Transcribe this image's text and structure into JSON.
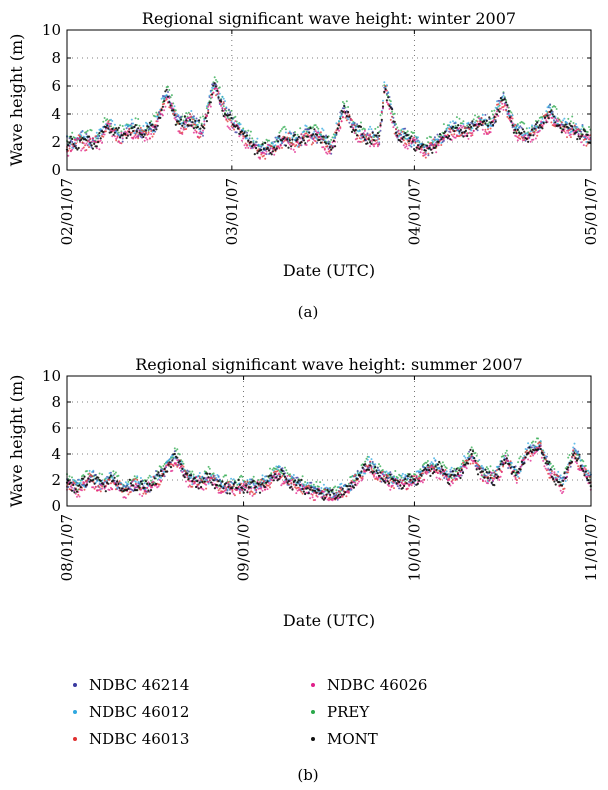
{
  "chart_data": [
    {
      "type": "scatter",
      "title": "Regional significant wave height: winter 2007",
      "xlabel": "Date (UTC)",
      "ylabel": "Wave height (m)",
      "ylim": [
        0,
        10
      ],
      "yticks": [
        0,
        2,
        4,
        6,
        8,
        10
      ],
      "xlim": [
        "2007-02-01",
        "2007-05-01"
      ],
      "xticks": [
        "02/01/07",
        "03/01/07",
        "04/01/07",
        "05/01/07"
      ],
      "grid": true,
      "caption": "(a)",
      "series_profile": [
        [
          "2007-02-01",
          1.8
        ],
        [
          "2007-02-04",
          2.2
        ],
        [
          "2007-02-06",
          2.0
        ],
        [
          "2007-02-08",
          3.3
        ],
        [
          "2007-02-10",
          2.4
        ],
        [
          "2007-02-12",
          3.0
        ],
        [
          "2007-02-14",
          2.6
        ],
        [
          "2007-02-16",
          3.2
        ],
        [
          "2007-02-18",
          5.5
        ],
        [
          "2007-02-20",
          3.2
        ],
        [
          "2007-02-22",
          3.6
        ],
        [
          "2007-02-24",
          2.8
        ],
        [
          "2007-02-26",
          6.2
        ],
        [
          "2007-02-28",
          4.0
        ],
        [
          "2007-03-02",
          3.0
        ],
        [
          "2007-03-04",
          2.0
        ],
        [
          "2007-03-06",
          1.4
        ],
        [
          "2007-03-08",
          1.6
        ],
        [
          "2007-03-10",
          2.3
        ],
        [
          "2007-03-12",
          2.0
        ],
        [
          "2007-03-14",
          2.6
        ],
        [
          "2007-03-16",
          2.4
        ],
        [
          "2007-03-18",
          1.5
        ],
        [
          "2007-03-20",
          4.5
        ],
        [
          "2007-03-22",
          2.8
        ],
        [
          "2007-03-24",
          2.4
        ],
        [
          "2007-03-26",
          2.2
        ],
        [
          "2007-03-27",
          6.0
        ],
        [
          "2007-03-29",
          2.6
        ],
        [
          "2007-04-01",
          2.0
        ],
        [
          "2007-04-03",
          1.4
        ],
        [
          "2007-04-06",
          2.5
        ],
        [
          "2007-04-08",
          3.0
        ],
        [
          "2007-04-10",
          2.8
        ],
        [
          "2007-04-12",
          3.4
        ],
        [
          "2007-04-14",
          3.2
        ],
        [
          "2007-04-16",
          5.2
        ],
        [
          "2007-04-18",
          3.0
        ],
        [
          "2007-04-20",
          2.4
        ],
        [
          "2007-04-22",
          3.0
        ],
        [
          "2007-04-24",
          4.2
        ],
        [
          "2007-04-26",
          3.0
        ],
        [
          "2007-04-28",
          3.0
        ],
        [
          "2007-05-01",
          2.2
        ]
      ]
    },
    {
      "type": "scatter",
      "title": "Regional significant wave height: summer 2007",
      "xlabel": "Date (UTC)",
      "ylabel": "Wave height (m)",
      "ylim": [
        0,
        10
      ],
      "yticks": [
        0,
        2,
        4,
        6,
        8,
        10
      ],
      "xlim": [
        "2007-08-01",
        "2007-11-01"
      ],
      "xticks": [
        "08/01/07",
        "09/01/07",
        "10/01/07",
        "11/01/07"
      ],
      "grid": true,
      "caption": "(b)",
      "series_profile": [
        [
          "2007-08-01",
          1.8
        ],
        [
          "2007-08-03",
          1.4
        ],
        [
          "2007-08-05",
          2.2
        ],
        [
          "2007-08-07",
          1.6
        ],
        [
          "2007-08-09",
          2.0
        ],
        [
          "2007-08-11",
          1.2
        ],
        [
          "2007-08-13",
          1.8
        ],
        [
          "2007-08-15",
          1.4
        ],
        [
          "2007-08-17",
          2.2
        ],
        [
          "2007-08-20",
          3.8
        ],
        [
          "2007-08-22",
          2.4
        ],
        [
          "2007-08-24",
          1.8
        ],
        [
          "2007-08-26",
          2.2
        ],
        [
          "2007-08-28",
          1.6
        ],
        [
          "2007-08-30",
          1.4
        ],
        [
          "2007-09-01",
          1.6
        ],
        [
          "2007-09-03",
          1.5
        ],
        [
          "2007-09-05",
          1.8
        ],
        [
          "2007-09-07",
          2.6
        ],
        [
          "2007-09-09",
          2.0
        ],
        [
          "2007-09-11",
          1.6
        ],
        [
          "2007-09-13",
          1.2
        ],
        [
          "2007-09-15",
          1.0
        ],
        [
          "2007-09-17",
          0.8
        ],
        [
          "2007-09-19",
          1.2
        ],
        [
          "2007-09-21",
          2.2
        ],
        [
          "2007-09-23",
          3.2
        ],
        [
          "2007-09-25",
          2.4
        ],
        [
          "2007-09-27",
          2.0
        ],
        [
          "2007-09-29",
          1.8
        ],
        [
          "2007-10-01",
          2.0
        ],
        [
          "2007-10-03",
          2.8
        ],
        [
          "2007-10-05",
          3.0
        ],
        [
          "2007-10-07",
          2.2
        ],
        [
          "2007-10-09",
          2.6
        ],
        [
          "2007-10-11",
          4.0
        ],
        [
          "2007-10-13",
          2.4
        ],
        [
          "2007-10-15",
          2.2
        ],
        [
          "2007-10-17",
          3.6
        ],
        [
          "2007-10-19",
          2.4
        ],
        [
          "2007-10-21",
          4.2
        ],
        [
          "2007-10-23",
          4.6
        ],
        [
          "2007-10-25",
          2.6
        ],
        [
          "2007-10-27",
          1.6
        ],
        [
          "2007-10-29",
          4.2
        ],
        [
          "2007-11-01",
          1.8
        ]
      ]
    }
  ],
  "legend": {
    "entries": [
      {
        "name": "NDBC 46214",
        "color": "#3a3aa0"
      },
      {
        "name": "NDBC 46012",
        "color": "#2fa8e0"
      },
      {
        "name": "NDBC 46013",
        "color": "#e03030"
      },
      {
        "name": "NDBC 46026",
        "color": "#e0208a"
      },
      {
        "name": "PREY",
        "color": "#2aa84a"
      },
      {
        "name": "MONT",
        "color": "#111111"
      }
    ]
  },
  "caption_b": "(b)"
}
